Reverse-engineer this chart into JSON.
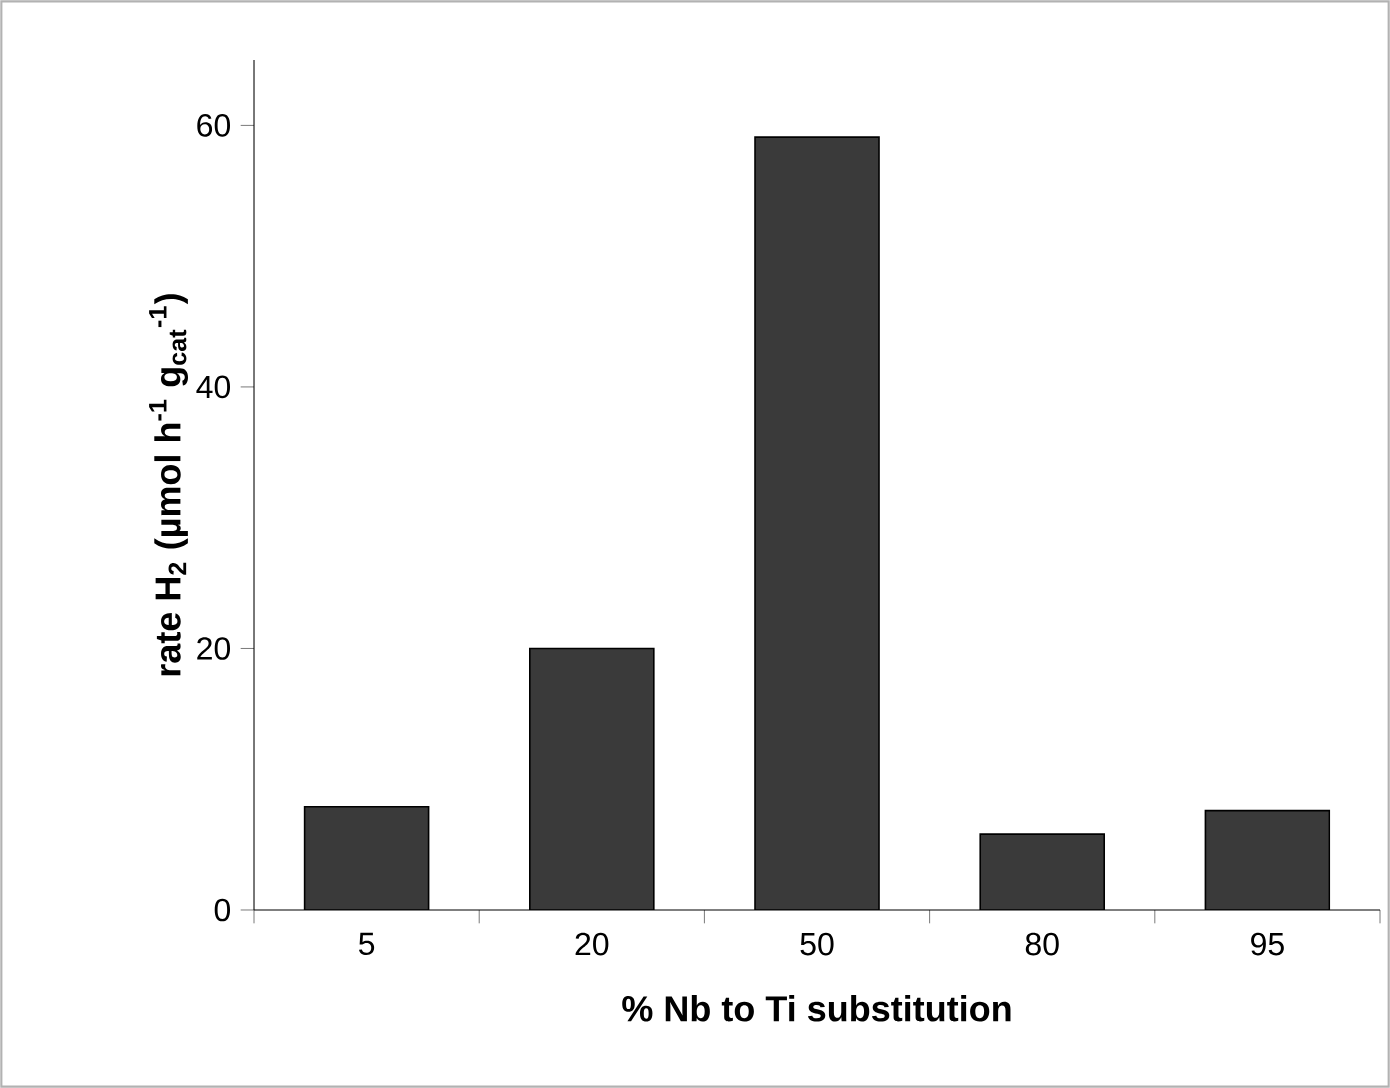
{
  "chart_data": {
    "type": "bar",
    "xlabel": "% Nb to Ti substitution",
    "ylabel": "rate H$_{2}$ (µmol h$^{-1}$ g$_{cat}$$^{-1}$)",
    "categories": [
      "5",
      "20",
      "50",
      "80",
      "95"
    ],
    "values": [
      7.9,
      20.0,
      59.1,
      5.8,
      7.6
    ],
    "color": "#3a3a3a",
    "ylim": [
      0,
      65
    ],
    "yticks": [
      0,
      20,
      40,
      60
    ]
  }
}
